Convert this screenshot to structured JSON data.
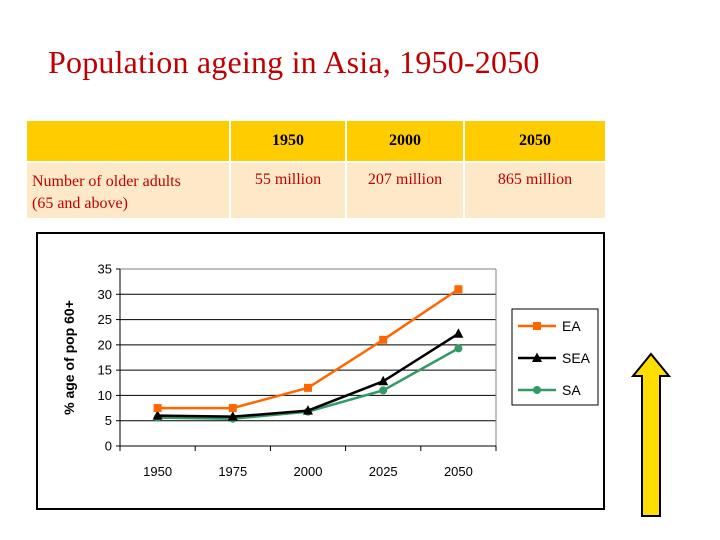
{
  "slide": {
    "title": "Population ageing in Asia, 1950-2050"
  },
  "table": {
    "headers": [
      "",
      "1950",
      "2000",
      "2050"
    ],
    "row_label": "Number of older adults (65 and above)",
    "row_label_lines": [
      "Number of older adults",
      "(65 and above)"
    ],
    "values": [
      "55 million",
      "207 million",
      "865 million"
    ]
  },
  "chart_data": {
    "type": "line",
    "x": [
      "1950",
      "1975",
      "2000",
      "2025",
      "2050"
    ],
    "ylabel": "% age of pop 60+",
    "ylim": [
      0,
      35
    ],
    "yticks": [
      "0",
      "5",
      "10",
      "15",
      "20",
      "25",
      "30",
      "35"
    ],
    "ytick_values": [
      0,
      5,
      10,
      15,
      20,
      25,
      30,
      35
    ],
    "grid": "horizontal",
    "legend_position": "right",
    "series": [
      {
        "name": "EA",
        "values": [
          7.5,
          7.5,
          11.5,
          21,
          31
        ],
        "color": "#ff6600",
        "marker": "square"
      },
      {
        "name": "SEA",
        "values": [
          6,
          5.8,
          7,
          12.8,
          22.2
        ],
        "color": "#000000",
        "marker": "triangle"
      },
      {
        "name": "SA",
        "values": [
          5.6,
          5.4,
          6.8,
          11,
          19.3
        ],
        "color": "#339966",
        "marker": "circle"
      }
    ]
  },
  "colors": {
    "title": "#c00000",
    "table_header": "#ffcc00",
    "table_body": "#fde9c8",
    "arrow_fill": "#ffdd00"
  },
  "icons": {
    "arrow": "up-arrow-icon"
  }
}
